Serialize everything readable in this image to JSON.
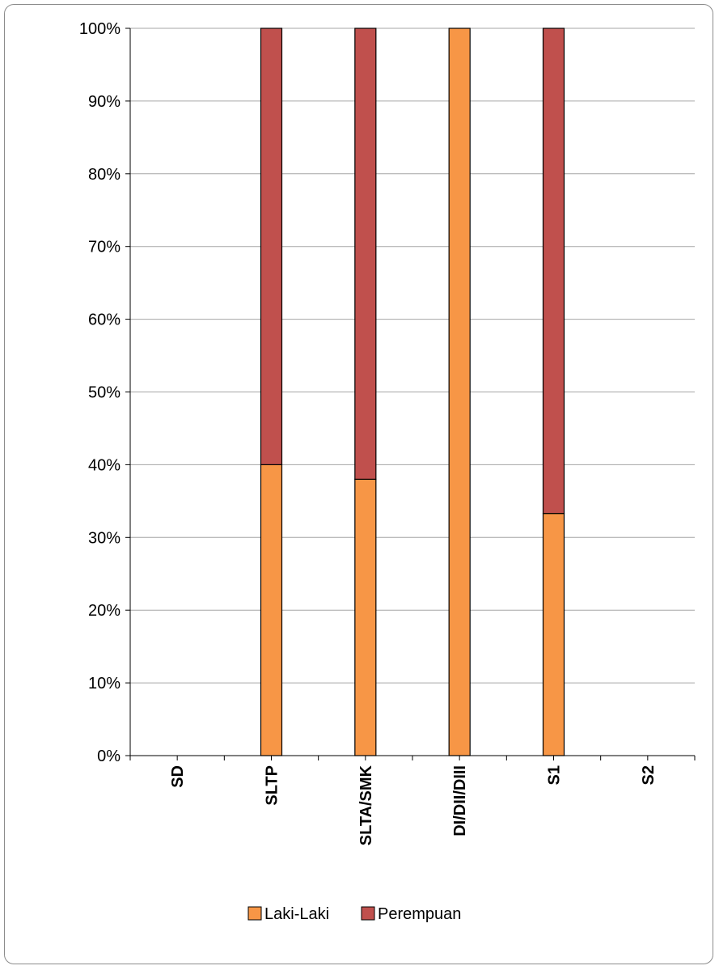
{
  "chart_data": {
    "type": "bar",
    "stacked": true,
    "percent": true,
    "title": "",
    "xlabel": "",
    "ylabel": "",
    "ylim": [
      0,
      100
    ],
    "y_tick_labels": [
      "0%",
      "10%",
      "20%",
      "30%",
      "40%",
      "50%",
      "60%",
      "70%",
      "80%",
      "90%",
      "100%"
    ],
    "categories": [
      "SD",
      "SLTP",
      "SLTA/SMK",
      "DI/DII/DIII",
      "S1",
      "S2"
    ],
    "series": [
      {
        "name": "Laki-Laki",
        "color": "#F79646",
        "values": [
          0,
          40,
          38,
          100,
          33.3,
          0
        ]
      },
      {
        "name": "Perempuan",
        "color": "#C0504D",
        "values": [
          0,
          60,
          62,
          0,
          66.7,
          0
        ]
      }
    ],
    "grid": true,
    "legend_position": "bottom"
  }
}
